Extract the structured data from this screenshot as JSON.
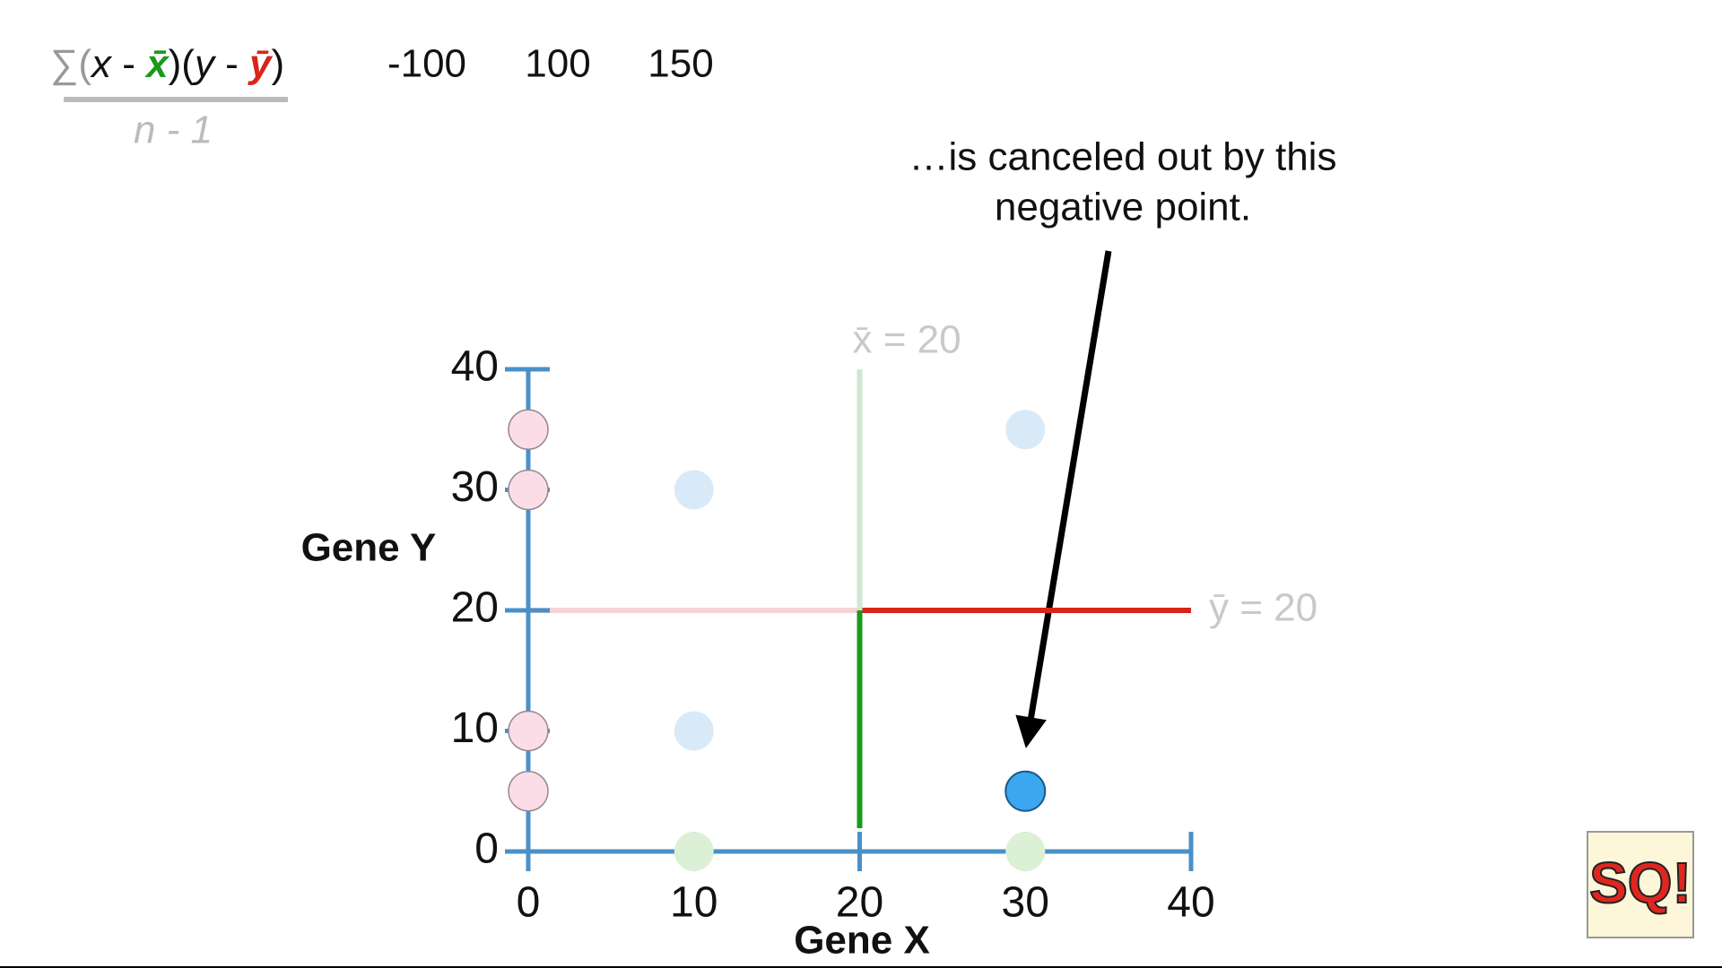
{
  "formula": {
    "numerator": [
      "∑(",
      "x",
      " - ",
      "x̄",
      ")(",
      "y",
      " - ",
      "ȳ",
      ")"
    ],
    "denominator": "n - 1"
  },
  "products": [
    -100,
    100,
    150
  ],
  "annotation": [
    "…is canceled out by this",
    "negative point."
  ],
  "logo": "SQ!",
  "chart_data": {
    "type": "scatter",
    "xlabel": "Gene X",
    "ylabel": "Gene Y",
    "xlim": [
      0,
      40
    ],
    "ylim": [
      0,
      40
    ],
    "xticks": [
      0,
      10,
      20,
      30,
      40
    ],
    "yticks": [
      0,
      10,
      20,
      30,
      40
    ],
    "axis_color": "#4a90c8",
    "series": [
      {
        "color": "#d8eaf8",
        "x": [
          10,
          30,
          10
        ],
        "y": [
          30,
          35,
          10
        ]
      },
      {
        "color": "#3aa7f0",
        "x": [
          30
        ],
        "y": [
          5
        ]
      }
    ],
    "y_projections": {
      "color": "#fbdde8",
      "values": [
        35,
        30,
        10,
        5
      ]
    },
    "x_projections": {
      "color": "#dcf0d6",
      "values": [
        10,
        30
      ]
    },
    "x_mean": {
      "value": 20,
      "label": "x̄ = 20",
      "color": "#1a9a1a",
      "faded": "#cfe8cf"
    },
    "y_mean": {
      "value": 20,
      "label": "ȳ = 20",
      "color": "#d8251a",
      "faded": "#f7d3d3"
    }
  }
}
